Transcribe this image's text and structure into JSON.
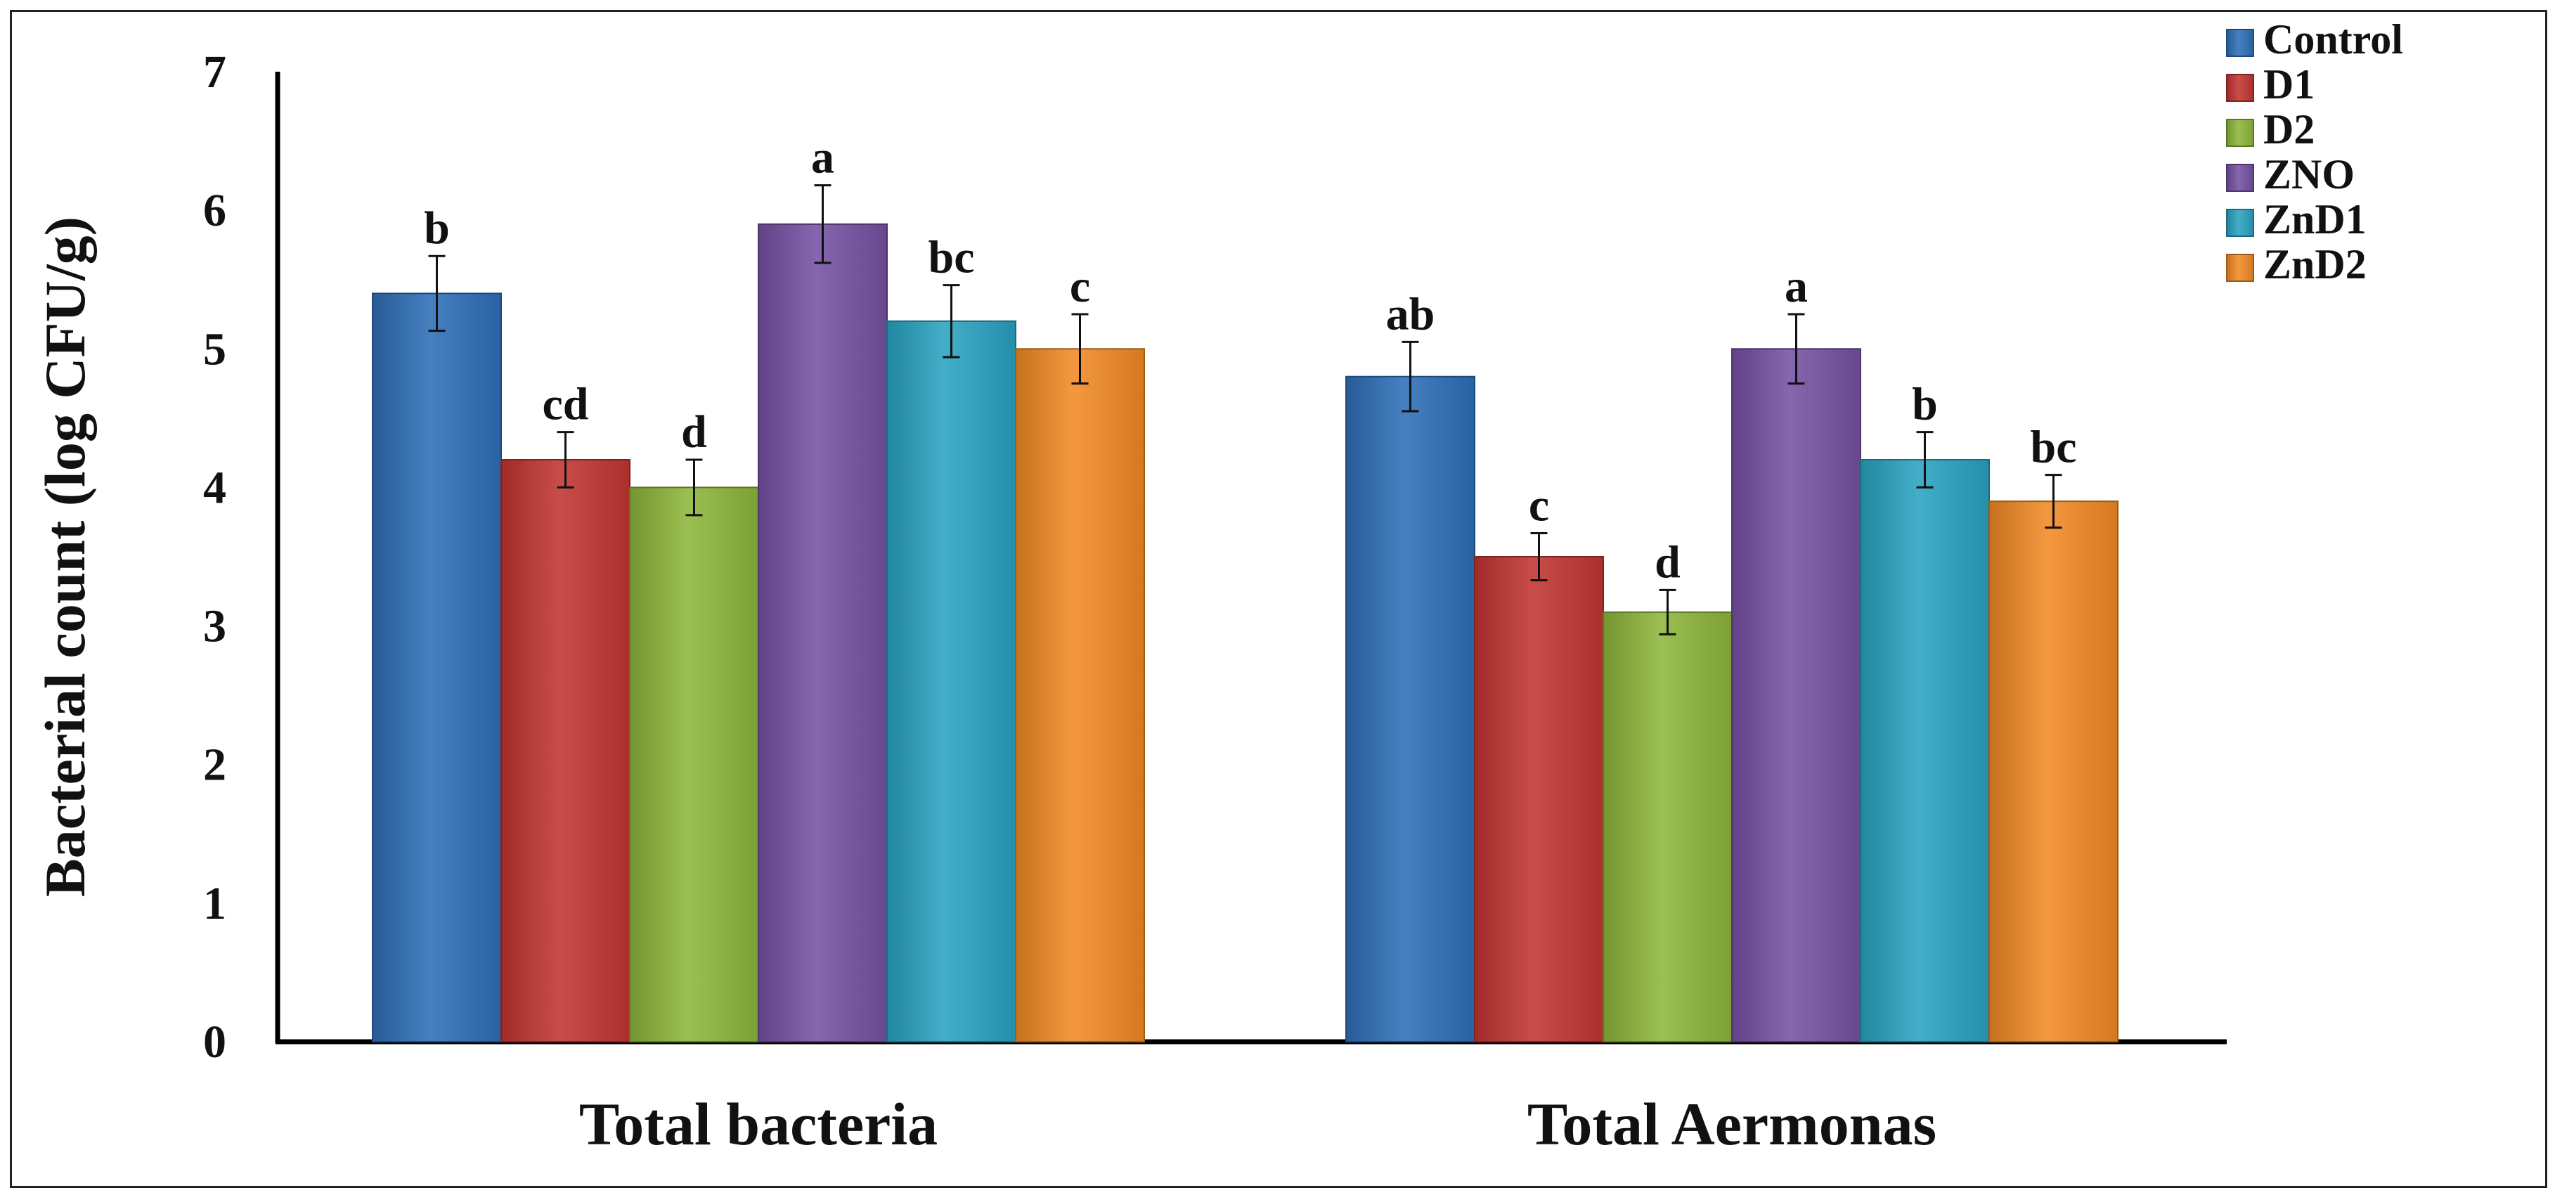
{
  "chart_data": {
    "type": "bar",
    "title": "",
    "xlabel": "",
    "ylabel": "Bacterial count (log CFU/g)",
    "ylim": [
      0,
      7
    ],
    "yticks": [
      "0",
      "1",
      "2",
      "3",
      "4",
      "5",
      "6",
      "7"
    ],
    "grid": false,
    "legend_position": "top-right",
    "categories": [
      "Total bacteria",
      "Total Aermonas"
    ],
    "series": [
      {
        "name": "Control",
        "color": "#2E6FB8",
        "values": [
          5.4,
          4.8
        ],
        "errors": [
          0.27,
          0.25
        ],
        "labels": [
          "b",
          "ab"
        ]
      },
      {
        "name": "D1",
        "color": "#C23531",
        "values": [
          4.2,
          3.5
        ],
        "errors": [
          0.2,
          0.17
        ],
        "labels": [
          "cd",
          "c"
        ]
      },
      {
        "name": "D2",
        "color": "#8DB63A",
        "values": [
          4.0,
          3.1
        ],
        "errors": [
          0.2,
          0.16
        ],
        "labels": [
          "d",
          "d"
        ]
      },
      {
        "name": "ZNO",
        "color": "#7651A3",
        "values": [
          5.9,
          5.0
        ],
        "errors": [
          0.28,
          0.25
        ],
        "labels": [
          "a",
          "a"
        ]
      },
      {
        "name": "ZnD1",
        "color": "#2AA3C2",
        "values": [
          5.2,
          4.2
        ],
        "errors": [
          0.26,
          0.2
        ],
        "labels": [
          "bc",
          "b"
        ]
      },
      {
        "name": "ZnD2",
        "color": "#F28A25",
        "values": [
          5.0,
          3.9
        ],
        "errors": [
          0.25,
          0.19
        ],
        "labels": [
          "c",
          "bc"
        ]
      }
    ]
  }
}
